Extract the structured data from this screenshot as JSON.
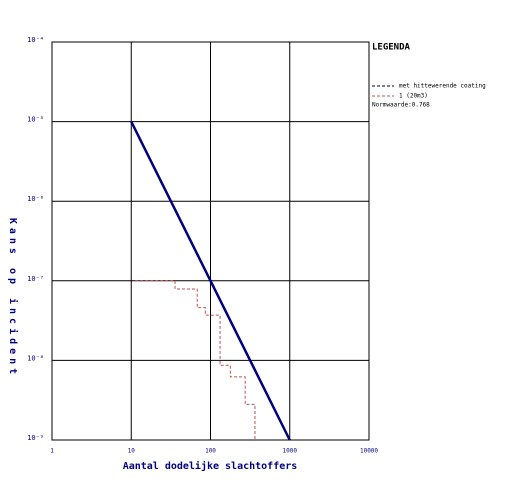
{
  "chart_data": {
    "type": "line",
    "xlabel": "Aantal dodelijke slachtoffers",
    "ylabel": "Kans op incident",
    "log_x": true,
    "log_y": true,
    "grid": true,
    "xlim": [
      1,
      10000
    ],
    "ylim": [
      1e-09,
      0.0001
    ],
    "xticks": [
      1,
      10,
      100,
      1000,
      10000
    ],
    "yticks": [
      {
        "value": 1e-09,
        "label": "10⁻⁹"
      },
      {
        "value": 1e-08,
        "label": "10⁻⁸"
      },
      {
        "value": 1e-07,
        "label": "10⁻⁷"
      },
      {
        "value": 1e-06,
        "label": "10⁻⁶"
      },
      {
        "value": 1e-05,
        "label": "10⁻⁵"
      },
      {
        "value": 0.0001,
        "label": "10⁻⁴"
      }
    ],
    "series": [
      {
        "color": "#000080",
        "dash": "none",
        "x": [
          10,
          1000
        ],
        "values": [
          1e-05,
          1e-09
        ]
      },
      {
        "color": "#c0504d",
        "dash": "3,2",
        "x": [
          11.2,
          35.7,
          35.7,
          68,
          68,
          86,
          86,
          132,
          132,
          178,
          178,
          274,
          274,
          364,
          364
        ],
        "values": [
          1e-07,
          1e-07,
          7.9e-08,
          7.9e-08,
          4.6e-08,
          4.6e-08,
          3.7e-08,
          3.7e-08,
          8.7e-09,
          8.7e-09,
          6.2e-09,
          6.2e-09,
          2.8e-09,
          2.8e-09,
          1e-09
        ]
      }
    ],
    "legend": {
      "title": "LEGENDA",
      "items": [
        {
          "label": "met hittewerende coating",
          "color": "#000000"
        },
        {
          "label": "1 (20m3)",
          "color": "#c0504d"
        }
      ],
      "note": "Normwaarde:0.768"
    }
  }
}
